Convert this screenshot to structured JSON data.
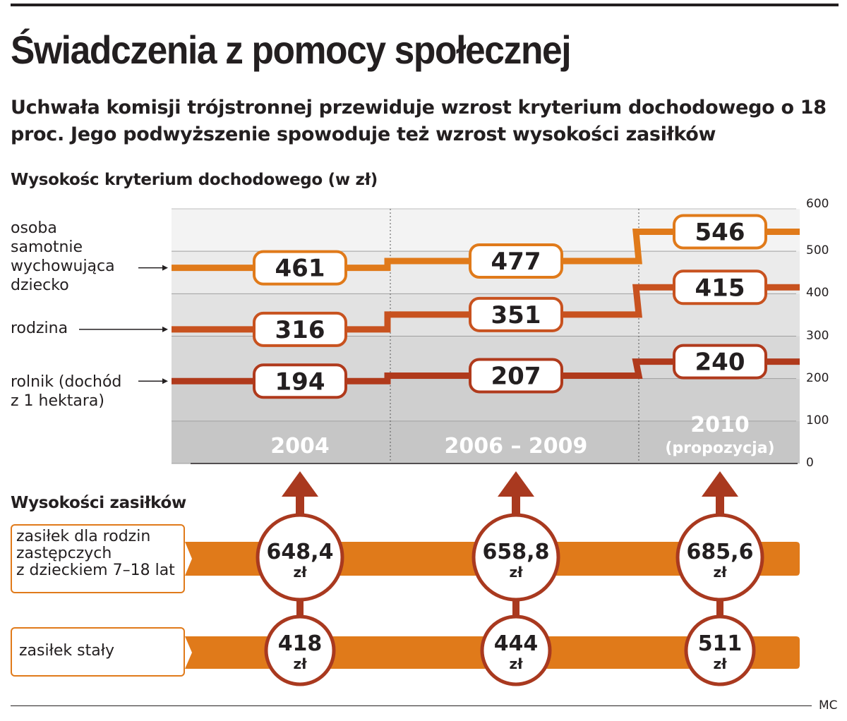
{
  "header": {
    "title": "Świadczenia z pomocy społecznej",
    "subtitle": "Uchwała komisji trójstronnej przewiduje wzrost kryterium dochodowego o 18 proc. Jego podwyższenie spowoduje też wzrost wysokości zasiłków"
  },
  "chart_data": [
    {
      "type": "line",
      "title": "Wysokośc kryterium dochodowego (w zł)",
      "categories": [
        "2004",
        "2006 – 2009",
        "2010 (propozycja)"
      ],
      "category_parts": [
        [
          "2004",
          ""
        ],
        [
          "2006 – 2009",
          ""
        ],
        [
          "2010",
          "(propozycja)"
        ]
      ],
      "series": [
        {
          "name": "osoba samotnie wychowująca dziecko",
          "label_lines": [
            "osoba",
            "samotnie",
            "wychowująca",
            "dziecko"
          ],
          "values": [
            461,
            477,
            546
          ],
          "color": "#e07a1a"
        },
        {
          "name": "rodzina",
          "label_lines": [
            "rodzina"
          ],
          "values": [
            316,
            351,
            415
          ],
          "color": "#c8521f"
        },
        {
          "name": "rolnik (dochód z 1 hektara)",
          "label_lines": [
            "rolnik (dochód",
            "z 1 hektara)"
          ],
          "values": [
            194,
            207,
            240
          ],
          "color": "#b03a1c"
        }
      ],
      "ylim": [
        0,
        600
      ],
      "yticks": [
        "0",
        "100",
        "200",
        "300",
        "400",
        "500",
        "600"
      ],
      "grid": true
    },
    {
      "type": "bar",
      "title": "Wysokości zasiłków",
      "categories": [
        "2004",
        "2006 – 2009",
        "2010 (propozycja)"
      ],
      "unit": "zł",
      "series": [
        {
          "name": "zasiłek dla rodzin zastępczych z dzieckiem 7–18 lat",
          "label_lines": [
            "zasiłek dla rodzin",
            "zastępczych",
            "z dzieckiem 7–18 lat"
          ],
          "values": [
            "648,4",
            "658,8",
            "685,6"
          ]
        },
        {
          "name": "zasiłek stały",
          "label_lines": [
            "zasiłek stały"
          ],
          "values": [
            "418",
            "444",
            "511"
          ]
        }
      ]
    }
  ],
  "footer": {
    "credit": "MC"
  },
  "colors": {
    "orange": "#e07a1a",
    "red_brown": "#a9391f",
    "dark": "#231f20",
    "grey_bg": "#d9d9d9"
  }
}
